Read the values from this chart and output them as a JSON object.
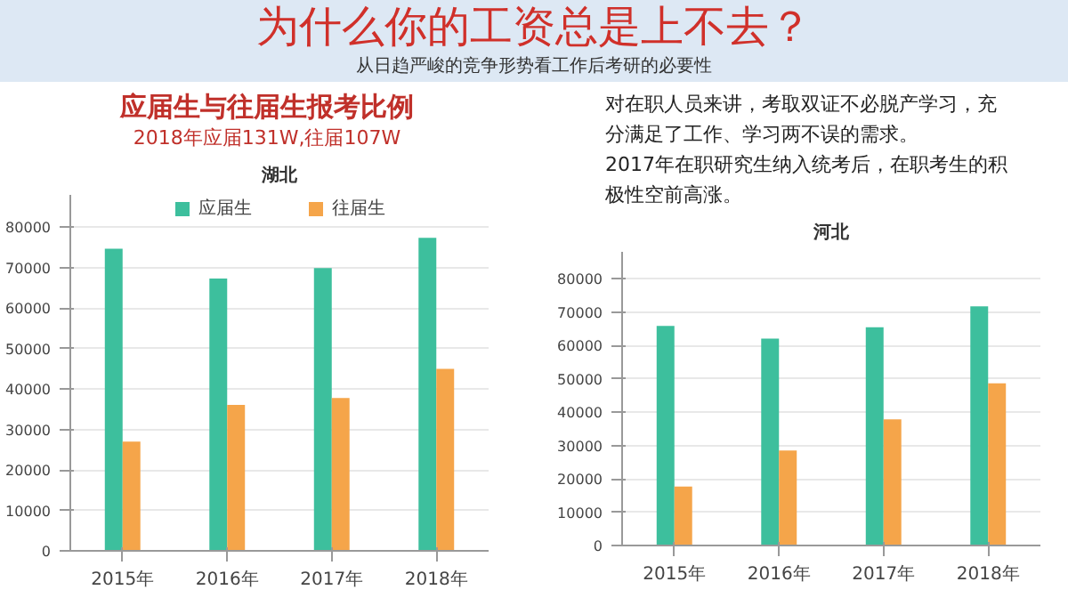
{
  "chart_data": [
    {
      "type": "bar",
      "title": "湖北",
      "categories": [
        "2015年",
        "2016年",
        "2017年",
        "2018年"
      ],
      "series": [
        {
          "name": "应届生",
          "color": "#3dbf9d",
          "values": [
            74700,
            67300,
            69900,
            77400
          ]
        },
        {
          "name": "往届生",
          "color": "#f5a54a",
          "values": [
            27000,
            36100,
            37800,
            45000
          ]
        }
      ],
      "ylim": [
        0,
        88000
      ],
      "yticks": [
        0,
        10000,
        20000,
        30000,
        40000,
        50000,
        60000,
        70000,
        80000
      ],
      "grid": "y",
      "legend": "top",
      "annotations": [
        "为什么你的工资总是上不去？",
        "从日趋严峻的竞争形势看工作后考研的必要性",
        "应届生与往届生报考比例",
        "2018年应届131W,往届107W"
      ]
    },
    {
      "type": "bar",
      "title": "河北",
      "categories": [
        "2015年",
        "2016年",
        "2017年",
        "2018年"
      ],
      "series": [
        {
          "color": "#3dbf9d",
          "values": [
            65800,
            62000,
            65400,
            71700
          ]
        },
        {
          "color": "#f5a54a",
          "values": [
            17700,
            28500,
            37800,
            48600
          ]
        }
      ],
      "ylim": [
        0,
        88000
      ],
      "yticks": [
        0,
        10000,
        20000,
        30000,
        40000,
        50000,
        60000,
        70000,
        80000
      ],
      "grid": "y",
      "annotations": [
        "对在职人员来讲，考取双证不必脱产学习，充分满足了工作、学习两不误的需求。",
        "2017年在职研究生纳入统考后，在职考生的积极性空前高涨。"
      ]
    }
  ]
}
